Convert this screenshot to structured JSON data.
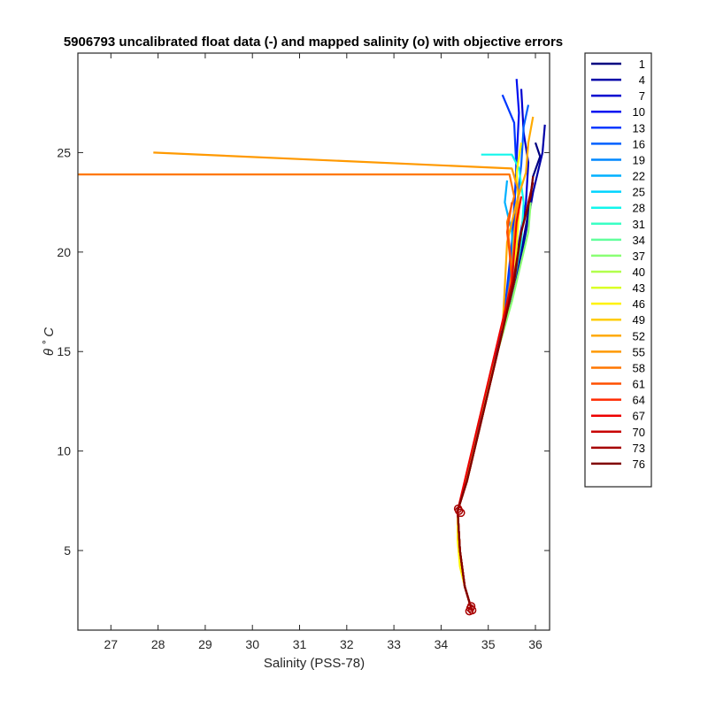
{
  "chart_data": {
    "type": "line",
    "title": "5906793 uncalibrated float data (-) and mapped salinity (o) with objective errors",
    "xlabel": "Salinity (PSS-78)",
    "ylabel": "θ ˚ C",
    "xlim": [
      26.3,
      36.3
    ],
    "ylim": [
      1,
      30
    ],
    "xticks": [
      27,
      28,
      29,
      30,
      31,
      32,
      33,
      34,
      35,
      36
    ],
    "yticks": [
      5,
      10,
      15,
      20,
      25
    ],
    "grid": false,
    "legend_position": "outside-right",
    "legend": [
      "1",
      "4",
      "7",
      "10",
      "13",
      "16",
      "19",
      "22",
      "25",
      "28",
      "31",
      "34",
      "37",
      "40",
      "43",
      "46",
      "49",
      "52",
      "55",
      "58",
      "61",
      "64",
      "67",
      "70",
      "73",
      "76"
    ],
    "legend_colors": [
      "#000080",
      "#0000a8",
      "#0000d0",
      "#0010f0",
      "#0038ff",
      "#0060ff",
      "#0088ff",
      "#00b0ff",
      "#00d4ff",
      "#12f6ec",
      "#3affc4",
      "#62ff9c",
      "#8aff74",
      "#b2ff4c",
      "#daff24",
      "#fff200",
      "#ffcc00",
      "#ffaa00",
      "#ff9900",
      "#ff7700",
      "#ff5000",
      "#ff2a00",
      "#ee0000",
      "#c80000",
      "#a60000",
      "#800000"
    ],
    "series": [
      {
        "name": "1",
        "color": "#000080",
        "x": [
          36.0,
          36.1,
          35.95,
          35.85,
          35.7,
          35.55,
          35.3,
          34.9,
          34.55,
          34.35,
          34.4,
          34.5,
          34.65
        ],
        "y": [
          25.5,
          24.8,
          23.8,
          22.0,
          20.0,
          18.3,
          16.0,
          12.0,
          8.5,
          7.0,
          5.0,
          3.2,
          2.0
        ]
      },
      {
        "name": "4",
        "color": "#0000a8",
        "x": [
          36.2,
          36.15,
          35.95,
          35.8,
          35.6,
          35.3,
          34.9,
          34.55,
          34.35,
          34.4,
          34.5,
          34.65
        ],
        "y": [
          26.4,
          25.0,
          23.0,
          21.0,
          18.6,
          16.2,
          12.2,
          8.6,
          7.0,
          5.0,
          3.2,
          2.0
        ]
      },
      {
        "name": "7",
        "color": "#0000d0",
        "x": [
          35.7,
          35.75,
          35.85,
          35.8,
          35.65,
          35.55,
          35.3,
          34.9,
          34.55,
          34.35,
          34.4,
          34.5,
          34.65
        ],
        "y": [
          28.2,
          26.0,
          24.5,
          22.5,
          20.5,
          18.4,
          16.0,
          12.0,
          8.5,
          7.0,
          5.0,
          3.2,
          2.0
        ]
      },
      {
        "name": "10",
        "color": "#0010f0",
        "x": [
          35.6,
          35.65,
          35.6,
          35.55,
          35.5,
          35.3,
          34.9,
          34.55,
          34.35,
          34.4,
          34.5,
          34.65
        ],
        "y": [
          28.7,
          27.0,
          24.6,
          22.0,
          19.5,
          16.0,
          12.0,
          8.5,
          7.0,
          5.0,
          3.2,
          2.0
        ]
      },
      {
        "name": "13",
        "color": "#0038ff",
        "x": [
          35.3,
          35.55,
          35.6,
          35.5,
          35.3,
          34.9,
          34.55,
          34.35,
          34.4,
          34.5,
          34.65
        ],
        "y": [
          27.9,
          26.5,
          24.0,
          20.5,
          16.0,
          12.0,
          8.5,
          7.0,
          5.0,
          3.2,
          2.0
        ]
      },
      {
        "name": "16",
        "color": "#0060ff",
        "x": [
          35.85,
          35.75,
          35.7,
          35.6,
          35.5,
          35.3,
          34.9,
          34.55,
          34.35,
          34.4,
          34.5,
          34.65
        ],
        "y": [
          27.4,
          26.3,
          24.4,
          22.2,
          19.5,
          16.0,
          12.0,
          8.5,
          7.0,
          5.0,
          3.2,
          2.0
        ]
      },
      {
        "name": "22",
        "color": "#00b0ff",
        "x": [
          35.4,
          35.35,
          35.5,
          35.55,
          35.3,
          34.9,
          34.55,
          34.35,
          34.4,
          34.5,
          34.65
        ],
        "y": [
          23.6,
          22.5,
          21.0,
          18.5,
          16.0,
          12.0,
          8.5,
          7.0,
          5.0,
          3.2,
          2.0
        ]
      },
      {
        "name": "28",
        "color": "#12f6ec",
        "x": [
          34.85,
          35.5,
          35.65,
          35.75,
          35.7,
          35.55,
          35.3,
          34.9,
          34.55,
          34.35,
          34.4,
          34.5,
          34.65
        ],
        "y": [
          24.9,
          24.9,
          24.2,
          22.5,
          20.5,
          18.5,
          16.0,
          12.0,
          8.5,
          7.0,
          5.0,
          3.2,
          2.0
        ]
      },
      {
        "name": "37",
        "color": "#8aff74",
        "x": [
          35.9,
          35.85,
          35.7,
          35.5,
          35.2,
          34.8,
          34.5,
          34.35,
          34.4,
          34.5,
          34.65
        ],
        "y": [
          22.5,
          21.0,
          19.5,
          17.5,
          15.0,
          11.5,
          8.3,
          7.0,
          5.0,
          3.2,
          2.0
        ]
      },
      {
        "name": "46",
        "color": "#fff200",
        "x": [
          35.7,
          35.6,
          35.65,
          35.55,
          35.3,
          34.9,
          34.55,
          34.35,
          34.35,
          34.4,
          34.5,
          34.65
        ],
        "y": [
          25.5,
          24.0,
          22.0,
          18.5,
          16.0,
          12.0,
          8.5,
          7.0,
          5.5,
          4.2,
          3.2,
          2.0
        ]
      },
      {
        "name": "52",
        "color": "#ffaa00",
        "x": [
          35.95,
          35.85,
          35.8,
          35.6,
          35.4,
          35.3,
          34.9,
          34.55,
          34.35,
          34.4,
          34.5,
          34.65
        ],
        "y": [
          26.8,
          25.5,
          24.0,
          22.5,
          20.5,
          16.0,
          12.0,
          8.5,
          7.0,
          5.0,
          3.2,
          2.0
        ]
      },
      {
        "name": "55",
        "color": "#ff9900",
        "x": [
          27.9,
          35.5,
          35.65,
          35.55,
          35.5,
          35.3,
          34.9,
          34.55,
          34.35,
          34.4,
          34.5,
          34.65
        ],
        "y": [
          25.0,
          24.2,
          23.0,
          21.0,
          18.8,
          16.0,
          12.0,
          8.5,
          7.0,
          5.0,
          3.2,
          2.0
        ]
      },
      {
        "name": "58",
        "color": "#ff7700",
        "x": [
          26.3,
          35.45,
          35.55,
          35.4,
          35.5,
          35.3,
          34.9,
          34.55,
          34.35,
          34.4,
          34.5,
          34.65
        ],
        "y": [
          23.9,
          23.9,
          22.8,
          21.5,
          19.0,
          16.0,
          12.0,
          8.5,
          7.0,
          5.0,
          3.2,
          2.0
        ]
      },
      {
        "name": "61",
        "color": "#ff5000",
        "x": [
          35.5,
          35.4,
          35.45,
          35.5,
          35.3,
          34.9,
          34.55,
          34.35,
          34.4,
          34.5,
          34.65
        ],
        "y": [
          22.5,
          21.0,
          20.0,
          18.5,
          16.0,
          12.0,
          8.5,
          7.0,
          5.0,
          3.2,
          2.0
        ]
      },
      {
        "name": "67",
        "color": "#ee0000",
        "x": [
          35.7,
          35.6,
          35.55,
          35.5,
          35.25,
          34.85,
          34.5,
          34.35,
          34.4,
          34.5,
          34.65
        ],
        "y": [
          22.8,
          21.5,
          20.0,
          18.5,
          16.0,
          12.0,
          8.5,
          7.0,
          5.0,
          3.2,
          2.0
        ]
      },
      {
        "name": "73",
        "color": "#a60000",
        "x": [
          35.95,
          35.85,
          35.7,
          35.55,
          35.3,
          34.9,
          34.55,
          34.35,
          34.4,
          34.5,
          34.65
        ],
        "y": [
          23.5,
          22.5,
          21.0,
          18.8,
          16.0,
          12.0,
          8.5,
          7.0,
          5.0,
          3.2,
          2.0
        ]
      },
      {
        "name": "76",
        "color": "#800000",
        "x": [
          35.95,
          35.9,
          35.7,
          35.55,
          35.3,
          34.9,
          34.55,
          34.35,
          34.4,
          34.5,
          34.65
        ],
        "y": [
          23.8,
          22.8,
          21.0,
          18.5,
          16.0,
          12.0,
          8.5,
          7.0,
          5.0,
          3.2,
          2.0
        ]
      }
    ],
    "mapped_markers": {
      "color": "#a80000",
      "points": [
        [
          34.38,
          7.0
        ],
        [
          34.42,
          6.9
        ],
        [
          34.36,
          7.1
        ],
        [
          34.62,
          2.1
        ],
        [
          34.66,
          2.0
        ],
        [
          34.64,
          2.2
        ],
        [
          34.6,
          1.95
        ]
      ]
    }
  }
}
